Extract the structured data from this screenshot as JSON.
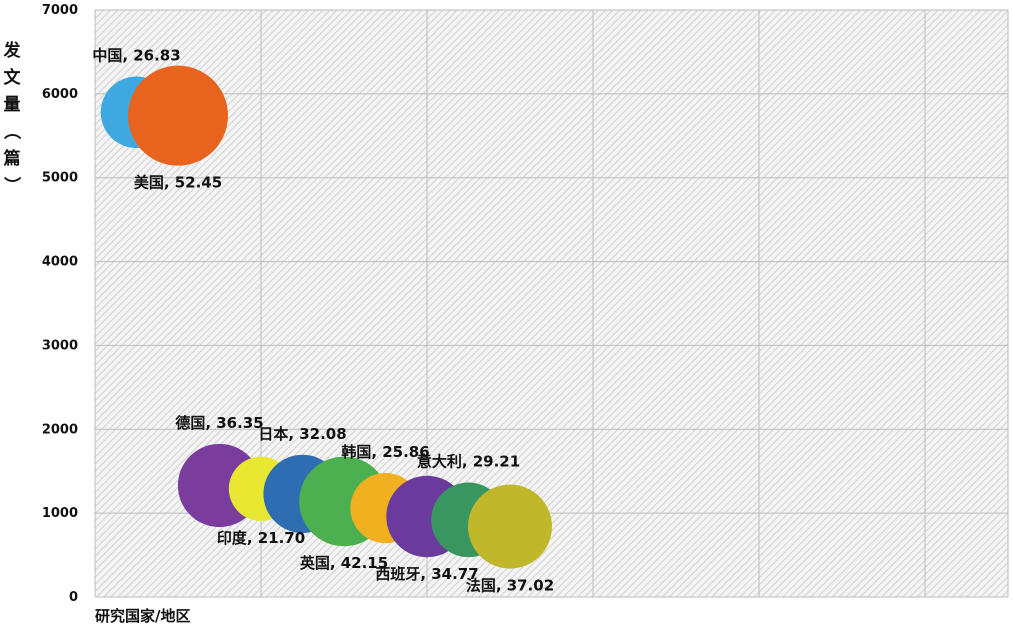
{
  "chart_data": {
    "type": "bubble",
    "xlabel": "研究国家/地区",
    "ylabel": "发文量（篇）",
    "ylim": [
      0,
      7000
    ],
    "yticks": [
      0,
      1000,
      2000,
      3000,
      4000,
      5000,
      6000,
      7000
    ],
    "xlim": [
      0,
      11
    ],
    "grid": true,
    "points": [
      {
        "label": "中国, 26.83",
        "country": "中国",
        "x": 0.5,
        "y": 5780,
        "size": 26.83,
        "color": "#3ea8e0",
        "label_pos": "above"
      },
      {
        "label": "美国, 52.45",
        "country": "美国",
        "x": 1.0,
        "y": 5740,
        "size": 52.45,
        "color": "#e8641e",
        "label_pos": "below"
      },
      {
        "label": "德国, 36.35",
        "country": "德国",
        "x": 1.5,
        "y": 1330,
        "size": 36.35,
        "color": "#7a3d9e",
        "label_pos": "above"
      },
      {
        "label": "印度, 21.70",
        "country": "印度",
        "x": 2.0,
        "y": 1290,
        "size": 21.7,
        "color": "#e8e832",
        "label_pos": "below"
      },
      {
        "label": "日本, 32.08",
        "country": "日本",
        "x": 2.5,
        "y": 1230,
        "size": 32.08,
        "color": "#2f6db3",
        "label_pos": "above"
      },
      {
        "label": "英国, 42.15",
        "country": "英国",
        "x": 3.0,
        "y": 1140,
        "size": 42.15,
        "color": "#4caf50",
        "label_pos": "below"
      },
      {
        "label": "韩国, 25.86",
        "country": "韩国",
        "x": 3.5,
        "y": 1060,
        "size": 25.86,
        "color": "#f0b020",
        "label_pos": "above"
      },
      {
        "label": "西班牙, 34.77",
        "country": "西班牙",
        "x": 4.0,
        "y": 960,
        "size": 34.77,
        "color": "#6a3a9c",
        "label_pos": "below"
      },
      {
        "label": "意大利, 29.21",
        "country": "意大利",
        "x": 4.5,
        "y": 920,
        "size": 29.21,
        "color": "#3a9660",
        "label_pos": "above"
      },
      {
        "label": "法国, 37.02",
        "country": "法国",
        "x": 5.0,
        "y": 840,
        "size": 37.02,
        "color": "#c0b82a",
        "label_pos": "below"
      }
    ]
  }
}
